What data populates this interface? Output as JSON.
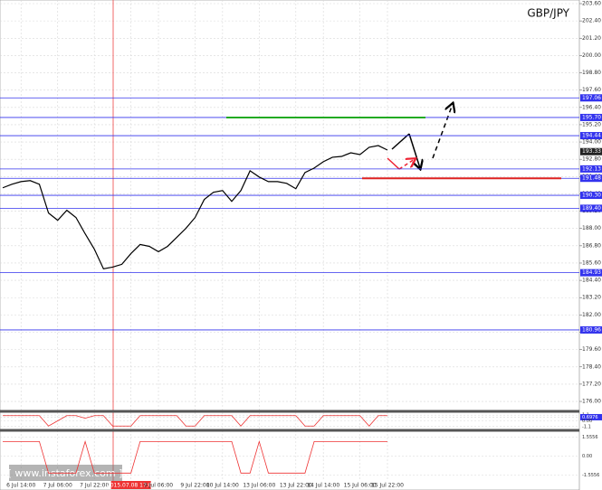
{
  "chart_data": {
    "type": "line",
    "title": "GBP/JPY",
    "categories": [
      null,
      null,
      "6 Jul 14:00",
      null,
      null,
      null,
      "7 Jul 06:00",
      null,
      null,
      null,
      "7 Jul 22:00",
      null,
      null,
      null,
      "2015.07.08 17:00",
      null,
      null,
      "9 Jul 06:00",
      null,
      null,
      null,
      "9 Jul 22:00",
      null,
      null,
      "10 Jul 14:00",
      null,
      null,
      null,
      "13 Jul 06:00",
      null,
      null,
      null,
      "13 Jul 22:00",
      null,
      null,
      "14 Jul 14:00",
      null,
      null,
      null,
      "15 Jul 06:00",
      null,
      null,
      "15 Jul 22:00"
    ],
    "series": [
      {
        "color": "#000000",
        "values": [
          190.82,
          191.07,
          191.25,
          191.32,
          191.07,
          189.07,
          188.57,
          189.26,
          188.76,
          187.63,
          186.57,
          185.2,
          185.32,
          185.51,
          186.26,
          186.89,
          186.76,
          186.39,
          186.76,
          187.38,
          188.01,
          188.76,
          190.01,
          190.51,
          190.63,
          189.88,
          190.63,
          192.0,
          191.57,
          191.25,
          191.25,
          191.13,
          190.76,
          191.88,
          192.19,
          192.63,
          192.94,
          193.0,
          193.25,
          193.13,
          193.63,
          193.75,
          193.44
        ]
      }
    ],
    "ylim": [
      175.5,
      203.6
    ],
    "yticks": [
      {
        "value": 203.6,
        "label": "203.60"
      },
      {
        "value": 202.4,
        "label": "202.40"
      },
      {
        "value": 201.2,
        "label": "201.20"
      },
      {
        "value": 200,
        "label": "200.00"
      },
      {
        "value": 198.8,
        "label": "198.80"
      },
      {
        "value": 197.6,
        "label": "197.60"
      },
      {
        "value": 196.4,
        "label": "196.40"
      },
      {
        "value": 195.2,
        "label": "195.20"
      },
      {
        "value": 194,
        "label": "194.00"
      },
      {
        "value": 192.8,
        "label": "192.80"
      },
      {
        "value": 191.6,
        "label": "191.60"
      },
      {
        "value": 190.4,
        "label": "190.40"
      },
      {
        "value": 189.2,
        "label": "189.20"
      },
      {
        "value": 188,
        "label": "188.00"
      },
      {
        "value": 186.8,
        "label": "186.80"
      },
      {
        "value": 185.6,
        "label": "185.60"
      },
      {
        "value": 184.4,
        "label": "184.40"
      },
      {
        "value": 183.2,
        "label": "183.20"
      },
      {
        "value": 182,
        "label": "182.00"
      },
      {
        "value": 180.8,
        "label": "180.80"
      },
      {
        "value": 179.6,
        "label": "179.60"
      },
      {
        "value": 178.4,
        "label": "178.40"
      },
      {
        "value": 177.2,
        "label": "177.20"
      },
      {
        "value": 176,
        "label": "176.00"
      }
    ],
    "grid": true,
    "levels": [
      {
        "value": 197.06,
        "label": "197.06"
      },
      {
        "value": 195.7,
        "label": "195.70"
      },
      {
        "value": 194.44,
        "label": "194.44"
      },
      {
        "value": 192.13,
        "label": "192.13"
      },
      {
        "value": 191.48,
        "label": "191.48"
      },
      {
        "value": 190.3,
        "label": "190.30"
      },
      {
        "value": 189.4,
        "label": "189.40"
      },
      {
        "value": 184.93,
        "label": "184.93"
      },
      {
        "value": 180.96,
        "label": "180.96"
      }
    ],
    "level_color": "#3333ee",
    "target_lines": [
      {
        "value": 195.7,
        "color": "#22aa22"
      },
      {
        "value": 191.48,
        "color": "#dd2222"
      }
    ],
    "current_price": 193.33,
    "indicators": [
      {
        "color": "#ee3333",
        "ylim": [
          -1.3,
          1.3
        ],
        "yticks": [
          1.1,
          0.6976,
          {
            "value": 0,
            "label": "0.00"
          },
          -1.1
        ],
        "highlight": 0.6976,
        "values": [
          1,
          1,
          1,
          1,
          1,
          -1,
          0,
          1,
          1,
          0.5,
          1,
          1,
          -1,
          -1,
          -1,
          1,
          1,
          1,
          1,
          1,
          -1,
          -1,
          1,
          1,
          1,
          1,
          -1,
          1,
          1,
          1,
          1,
          1,
          1,
          -1,
          -1,
          1,
          1,
          1,
          1,
          1,
          -1,
          1,
          1
        ]
      },
      {
        "color": "#ee3333",
        "ylim": [
          -1.9,
          1.9
        ],
        "yticks": [
          1.5556,
          {
            "value": 0,
            "label": "0.00"
          },
          -1.5556
        ],
        "values": [
          1.2,
          1.2,
          1.2,
          1.2,
          1.2,
          -1.4,
          -1.4,
          -1.4,
          -1.4,
          1.2,
          -1.4,
          -1.4,
          -1.4,
          -1.4,
          -1.4,
          1.2,
          1.2,
          1.2,
          1.2,
          1.2,
          1.2,
          1.2,
          1.2,
          1.2,
          1.2,
          1.2,
          -1.4,
          -1.4,
          1.2,
          -1.4,
          -1.4,
          -1.4,
          -1.4,
          -1.4,
          1.2,
          1.2,
          1.2,
          1.2,
          1.2,
          1.2,
          1.2,
          1.2,
          1.2
        ]
      }
    ],
    "watermark": "[ www.instaforex.com ]"
  }
}
